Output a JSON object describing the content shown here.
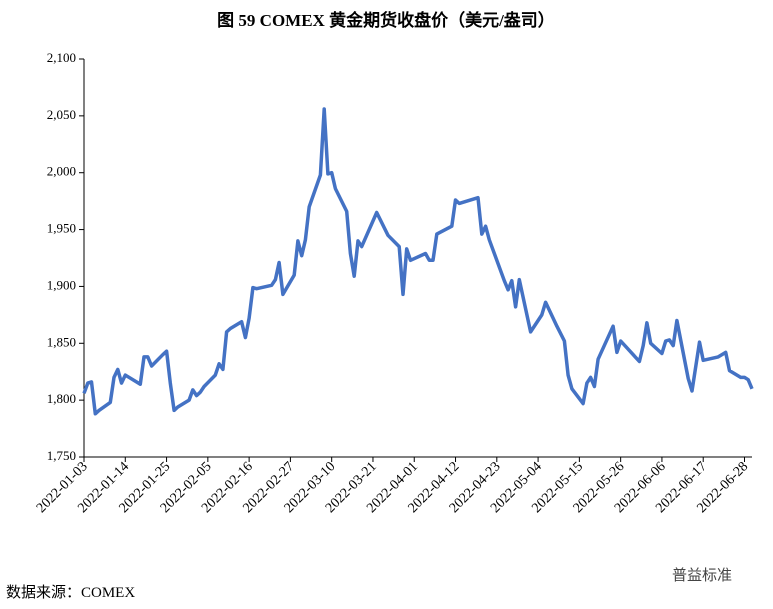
{
  "chart_data": {
    "type": "line",
    "title": "图 59 COMEX 黄金期货收盘价（美元/盎司）",
    "source": "数据来源：COMEX",
    "watermark": "普益标准",
    "x": [
      "2022-01-03",
      "2022-01-04",
      "2022-01-05",
      "2022-01-06",
      "2022-01-07",
      "2022-01-10",
      "2022-01-11",
      "2022-01-12",
      "2022-01-13",
      "2022-01-14",
      "2022-01-18",
      "2022-01-19",
      "2022-01-20",
      "2022-01-21",
      "2022-01-24",
      "2022-01-25",
      "2022-01-26",
      "2022-01-27",
      "2022-01-28",
      "2022-01-31",
      "2022-02-01",
      "2022-02-02",
      "2022-02-03",
      "2022-02-04",
      "2022-02-07",
      "2022-02-08",
      "2022-02-09",
      "2022-02-10",
      "2022-02-11",
      "2022-02-14",
      "2022-02-15",
      "2022-02-16",
      "2022-02-17",
      "2022-02-18",
      "2022-02-22",
      "2022-02-23",
      "2022-02-24",
      "2022-02-25",
      "2022-02-28",
      "2022-03-01",
      "2022-03-02",
      "2022-03-03",
      "2022-03-04",
      "2022-03-07",
      "2022-03-08",
      "2022-03-09",
      "2022-03-10",
      "2022-03-11",
      "2022-03-14",
      "2022-03-15",
      "2022-03-16",
      "2022-03-17",
      "2022-03-18",
      "2022-03-22",
      "2022-03-25",
      "2022-03-28",
      "2022-03-29",
      "2022-03-30",
      "2022-03-31",
      "2022-04-04",
      "2022-04-05",
      "2022-04-06",
      "2022-04-07",
      "2022-04-11",
      "2022-04-12",
      "2022-04-13",
      "2022-04-18",
      "2022-04-19",
      "2022-04-20",
      "2022-04-21",
      "2022-04-25",
      "2022-04-26",
      "2022-04-27",
      "2022-04-28",
      "2022-04-29",
      "2022-05-02",
      "2022-05-05",
      "2022-05-06",
      "2022-05-09",
      "2022-05-11",
      "2022-05-12",
      "2022-05-13",
      "2022-05-16",
      "2022-05-17",
      "2022-05-18",
      "2022-05-19",
      "2022-05-20",
      "2022-05-24",
      "2022-05-25",
      "2022-05-26",
      "2022-05-31",
      "2022-06-01",
      "2022-06-02",
      "2022-06-03",
      "2022-06-06",
      "2022-06-07",
      "2022-06-08",
      "2022-06-09",
      "2022-06-10",
      "2022-06-13",
      "2022-06-14",
      "2022-06-16",
      "2022-06-17",
      "2022-06-21",
      "2022-06-23",
      "2022-06-24",
      "2022-06-27",
      "2022-06-28",
      "2022-06-29",
      "2022-06-30"
    ],
    "series": [
      {
        "name": "COMEX黄金",
        "color": "#4472c4",
        "values": [
          1806,
          1815,
          1816,
          1788,
          1791,
          1798,
          1820,
          1827,
          1815,
          1822,
          1814,
          1838,
          1838,
          1830,
          1840,
          1843,
          1815,
          1791,
          1794,
          1800,
          1809,
          1804,
          1807,
          1812,
          1822,
          1832,
          1827,
          1860,
          1863,
          1869,
          1855,
          1872,
          1899,
          1898,
          1901,
          1906,
          1921,
          1893,
          1910,
          1940,
          1927,
          1941,
          1970,
          1998,
          2056,
          1999,
          2000,
          1986,
          1966,
          1929,
          1909,
          1940,
          1935,
          1965,
          1945,
          1935,
          1893,
          1933,
          1923,
          1929,
          1923,
          1923,
          1946,
          1953,
          1976,
          1973,
          1978,
          1946,
          1953,
          1941,
          1905,
          1897,
          1905,
          1882,
          1906,
          1860,
          1875,
          1886,
          1865,
          1852,
          1822,
          1810,
          1797,
          1815,
          1820,
          1812,
          1836,
          1865,
          1842,
          1852,
          1834,
          1848,
          1868,
          1850,
          1841,
          1852,
          1853,
          1848,
          1870,
          1819,
          1808,
          1851,
          1835,
          1838,
          1842,
          1826,
          1820,
          1820,
          1818,
          1810
        ]
      }
    ],
    "xlim": [
      "2022-01-03",
      "2022-06-30"
    ],
    "xticks": [
      "2022-01-03",
      "2022-01-14",
      "2022-01-25",
      "2022-02-05",
      "2022-02-16",
      "2022-02-27",
      "2022-03-10",
      "2022-03-21",
      "2022-04-01",
      "2022-04-12",
      "2022-04-23",
      "2022-05-04",
      "2022-05-15",
      "2022-05-26",
      "2022-06-06",
      "2022-06-17",
      "2022-06-28"
    ],
    "ylim": [
      1750,
      2100
    ],
    "yticks": [
      {
        "value": 1750,
        "label": "1,750"
      },
      {
        "value": 1800,
        "label": "1,800"
      },
      {
        "value": 1850,
        "label": "1,850"
      },
      {
        "value": 1900,
        "label": "1,900"
      },
      {
        "value": 1950,
        "label": "1,950"
      },
      {
        "value": 2000,
        "label": "2,000"
      },
      {
        "value": 2050,
        "label": "2,050"
      },
      {
        "value": 2100,
        "label": "2,100"
      }
    ]
  }
}
